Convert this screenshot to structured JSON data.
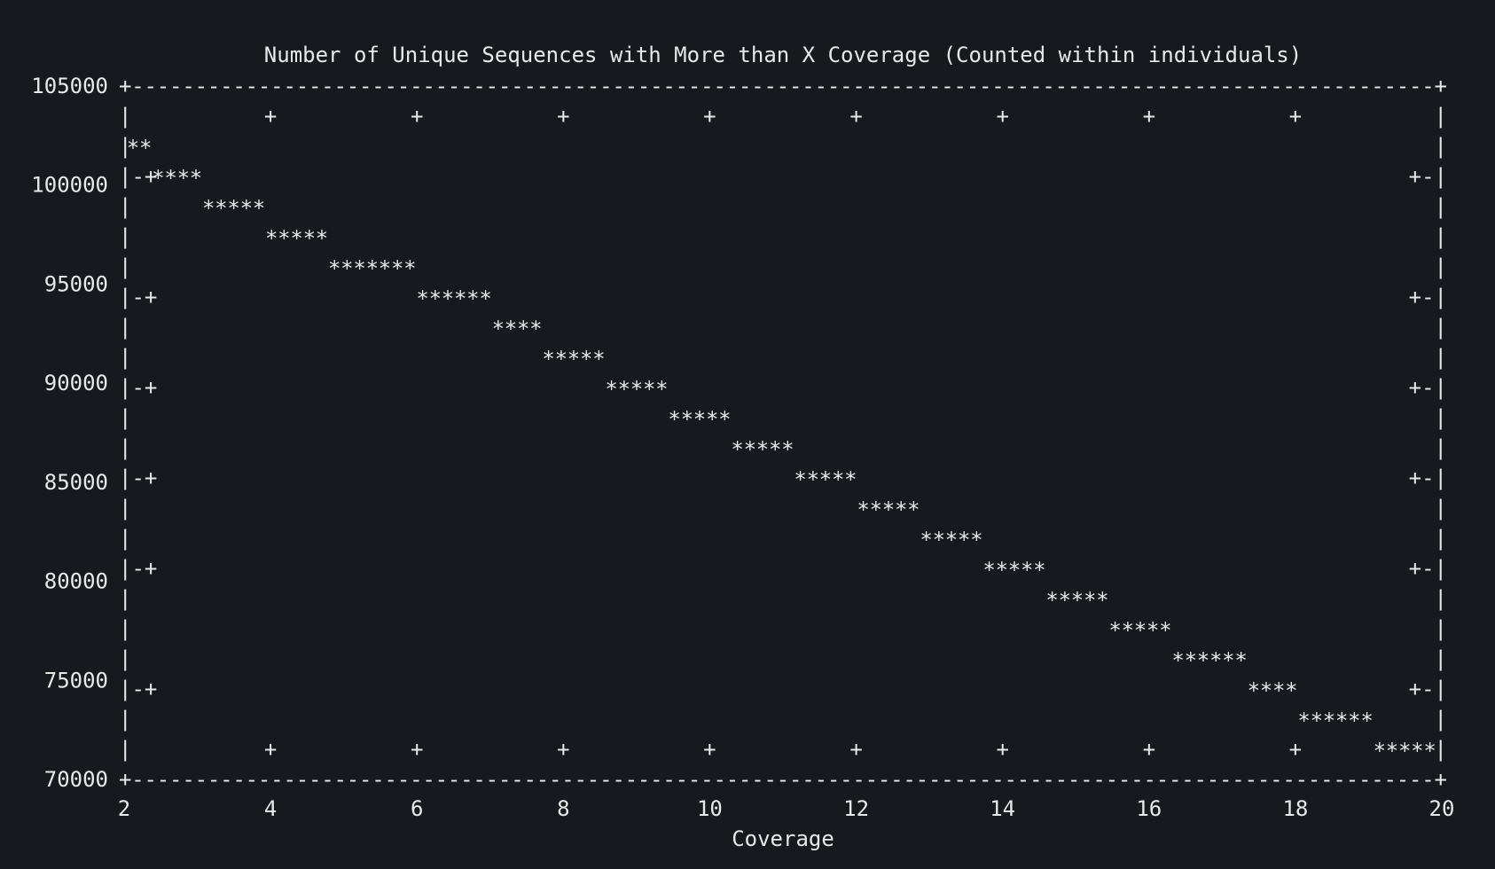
{
  "theme": {
    "background": "#16191e",
    "foreground": "#e8e8e8"
  },
  "chart_data": {
    "type": "line",
    "style": "ascii-gnuplot",
    "title": "Number of Unique Sequences with More than X Coverage (Counted within individuals)",
    "xlabel": "Coverage",
    "ylabel": "",
    "xlim": [
      2,
      20
    ],
    "ylim": [
      70000,
      105000
    ],
    "x_ticks": [
      "2",
      "4",
      "6",
      "8",
      "10",
      "12",
      "14",
      "16",
      "18",
      "20"
    ],
    "y_ticks": [
      "105000",
      "100000",
      "95000",
      "90000",
      "85000",
      "80000",
      "75000",
      "70000"
    ],
    "marker": "*",
    "grid": false,
    "legend": "none",
    "series": [
      {
        "x": [
          2,
          3,
          4,
          5,
          6,
          7,
          8,
          9,
          10,
          11,
          12,
          13,
          14,
          15,
          16,
          17,
          18,
          19,
          20
        ],
        "values": [
          102200,
          99800,
          98100,
          96300,
          95000,
          93500,
          91700,
          89800,
          88100,
          86200,
          84500,
          82600,
          80900,
          79000,
          77500,
          75800,
          74000,
          72300,
          70500
        ]
      }
    ]
  }
}
